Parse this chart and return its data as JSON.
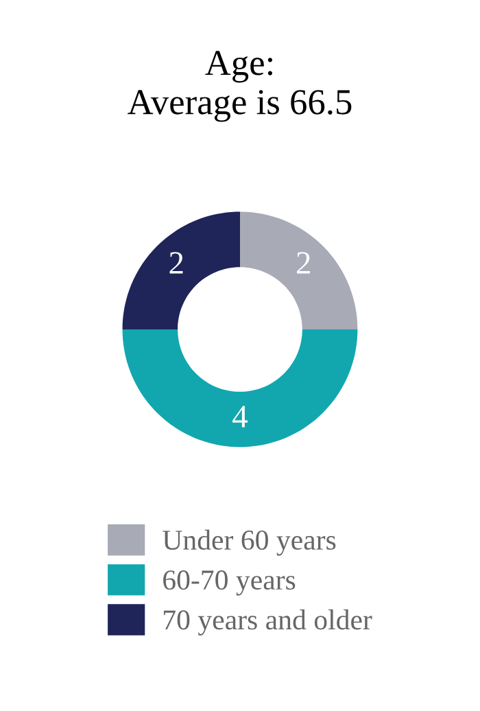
{
  "chart_data": {
    "type": "donut",
    "title": "Age:\nAverage is 66.5",
    "categories": [
      "Under 60 years",
      "60-70 years",
      "70 years and older"
    ],
    "values": [
      2,
      4,
      2
    ],
    "colors": [
      "#a8aab6",
      "#12a7af",
      "#1f2558"
    ],
    "data_labels": true,
    "legend": "bottom"
  }
}
